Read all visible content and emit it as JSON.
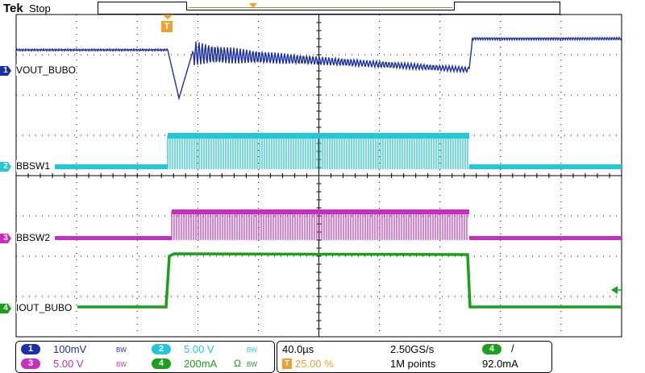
{
  "header": {
    "brand": "Tek",
    "acq_state": "Stop"
  },
  "channels": [
    {
      "num": "1",
      "name": "VOUT_BUBO",
      "color": "#1a2fa8",
      "scale": "100mV",
      "bw": "BW"
    },
    {
      "num": "2",
      "name": "BBSW1",
      "color": "#23c8d6",
      "scale": "5.00 V",
      "bw": "BW"
    },
    {
      "num": "3",
      "name": "BBSW2",
      "color": "#c62fbf",
      "scale": "5.00 V",
      "bw": "BW"
    },
    {
      "num": "4",
      "name": "IOUT_BUBO",
      "color": "#1aa01a",
      "scale": "200mA",
      "bw": "BW",
      "coupling": "Ω"
    }
  ],
  "timebase": {
    "horizontal": "40.0µs",
    "trigger_position": "25.00 %",
    "sample_rate": "2.50GS/s",
    "record_length": "1M points"
  },
  "trigger": {
    "source": "4",
    "slope": "/",
    "level": "92.0mA",
    "marker": "T"
  },
  "colors": {
    "grid": "#000000",
    "trigger": "#f0a030",
    "background": "#ffffff"
  }
}
